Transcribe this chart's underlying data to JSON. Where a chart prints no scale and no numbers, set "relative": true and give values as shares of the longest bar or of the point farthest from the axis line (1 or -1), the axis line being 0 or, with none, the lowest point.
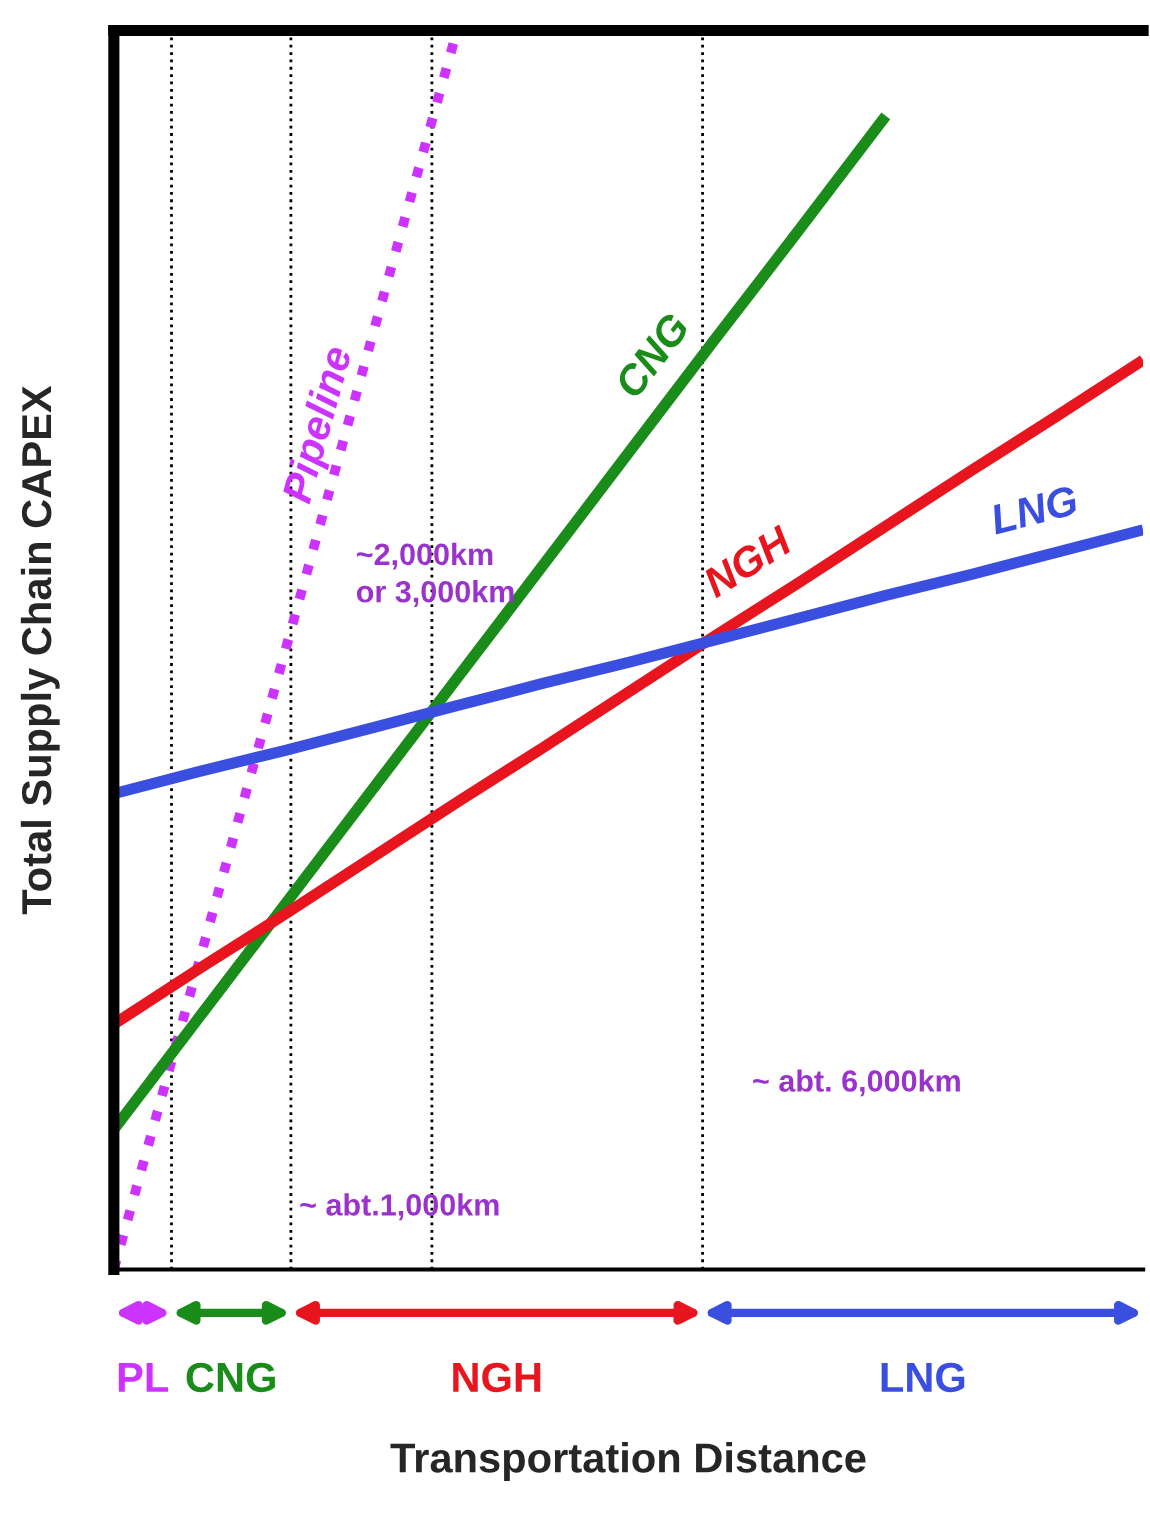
{
  "chart_data": {
    "type": "line",
    "relative": true,
    "xlabel": "Transportation Distance",
    "ylabel": "Total Supply Chain CAPEX",
    "categories": [
      null,
      null,
      null,
      null,
      null,
      null,
      null,
      null,
      null,
      null,
      null,
      null,
      null
    ],
    "series": [
      {
        "name": "Pipeline",
        "color": "#cc33ff",
        "line_style": "dotted",
        "values": [
          0,
          0.25,
          0.5,
          0.75,
          1.0,
          null,
          null,
          null,
          null,
          null,
          null,
          null,
          null
        ]
      },
      {
        "name": "CNG",
        "color": "#1a8c1a",
        "values": [
          0.113,
          0.204,
          0.295,
          0.386,
          0.477,
          0.568,
          0.659,
          0.75,
          0.84,
          0.931,
          null,
          null,
          null
        ]
      },
      {
        "name": "NGH",
        "color": "#e8141e",
        "values": [
          0.198,
          0.243,
          0.287,
          0.332,
          0.377,
          0.421,
          0.466,
          0.511,
          0.555,
          0.6,
          0.645,
          0.689,
          0.734
        ]
      },
      {
        "name": "LNG",
        "color": "#3a4fe0",
        "values": [
          0.384,
          0.402,
          0.419,
          0.437,
          0.455,
          0.473,
          0.49,
          0.508,
          0.526,
          0.544,
          0.561,
          0.579,
          0.597
        ]
      }
    ],
    "annotations": [
      "~2,000km\nor 3,000km",
      "~ abt.1,000km",
      "~ abt. 6,000km",
      "PL",
      "CNG",
      "NGH",
      "LNG"
    ],
    "legend": false,
    "grid": false,
    "marker": "none"
  }
}
